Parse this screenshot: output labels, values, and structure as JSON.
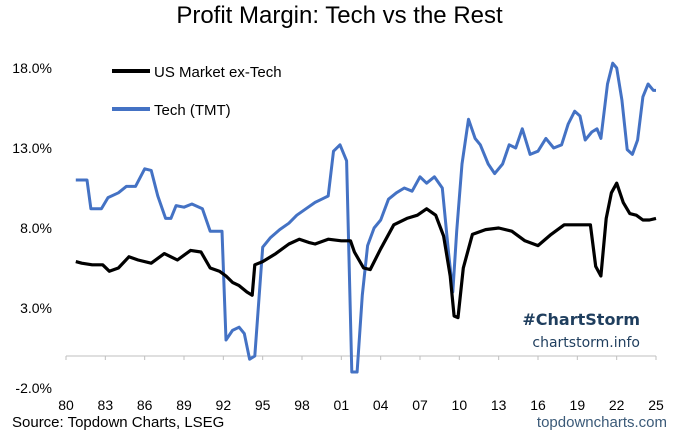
{
  "chart_data": {
    "type": "line",
    "title": "Profit Margin: Tech vs the Rest",
    "xlabel": "",
    "ylabel": "",
    "ylim": [
      -2.0,
      18.0
    ],
    "yticks": [
      "-2.0%",
      "3.0%",
      "8.0%",
      "13.0%",
      "18.0%"
    ],
    "ytick_values": [
      -2,
      3,
      8,
      13,
      18
    ],
    "xlim": [
      1980,
      2025
    ],
    "xtick_labels": [
      "80",
      "83",
      "86",
      "89",
      "92",
      "95",
      "98",
      "01",
      "04",
      "07",
      "10",
      "13",
      "16",
      "19",
      "22",
      "25"
    ],
    "xtick_values": [
      1980,
      1983,
      1986,
      1989,
      1992,
      1995,
      1998,
      2001,
      2004,
      2007,
      2010,
      2013,
      2016,
      2019,
      2022,
      2025
    ],
    "legend": [
      "US Market ex-Tech",
      "Tech (TMT)"
    ],
    "series": [
      {
        "name": "US Market ex-Tech",
        "color": "#000000",
        "x": [
          1980.75,
          1981.2,
          1982,
          1982.8,
          1983.3,
          1984,
          1984.8,
          1985.5,
          1986.5,
          1987.5,
          1988,
          1988.5,
          1989.5,
          1990.3,
          1991,
          1991.7,
          1992.2,
          1992.7,
          1993.2,
          1993.8,
          1994.2,
          1994.4,
          1995,
          1996,
          1997,
          1997.8,
          1998.5,
          1999,
          2000,
          2001,
          2001.7,
          2002,
          2002.7,
          2003.2,
          2004,
          2005,
          2006,
          2006.8,
          2007.5,
          2008.2,
          2008.8,
          2009.3,
          2009.6,
          2009.9,
          2010.3,
          2011,
          2012,
          2013,
          2014,
          2015,
          2016,
          2017,
          2018,
          2019,
          2020,
          2020.4,
          2020.8,
          2021.2,
          2021.6,
          2022,
          2022.5,
          2023,
          2023.5,
          2024,
          2024.5,
          2025
        ],
        "values": [
          5.9,
          5.8,
          5.7,
          5.7,
          5.3,
          5.5,
          6.2,
          6.0,
          5.8,
          6.4,
          6.2,
          6.0,
          6.6,
          6.5,
          5.5,
          5.3,
          5.0,
          4.6,
          4.4,
          4.0,
          3.8,
          5.7,
          5.9,
          6.4,
          7.0,
          7.3,
          7.1,
          7.0,
          7.3,
          7.2,
          7.2,
          6.5,
          5.5,
          5.4,
          6.7,
          8.2,
          8.6,
          8.8,
          9.2,
          8.8,
          7.5,
          5.0,
          2.5,
          2.4,
          5.5,
          7.6,
          7.9,
          8.0,
          7.8,
          7.2,
          6.9,
          7.6,
          8.2,
          8.2,
          8.2,
          5.6,
          5.0,
          8.6,
          10.2,
          10.8,
          9.6,
          8.9,
          8.8,
          8.5,
          8.5,
          8.6
        ]
      },
      {
        "name": "Tech (TMT)",
        "color": "#4472c4",
        "x": [
          1980.75,
          1981.6,
          1981.9,
          1982.7,
          1983.2,
          1984,
          1984.6,
          1985.3,
          1986,
          1986.5,
          1987,
          1987.6,
          1988,
          1988.4,
          1989,
          1989.6,
          1990.4,
          1991,
          1991.5,
          1991.9,
          1992.2,
          1992.7,
          1993.2,
          1993.6,
          1994,
          1994.4,
          1995,
          1995.6,
          1996.3,
          1997,
          1997.6,
          1998.3,
          1999,
          1999.5,
          2000,
          2000.4,
          2000.9,
          2001.4,
          2001.8,
          2002.2,
          2002.6,
          2003,
          2003.5,
          2004,
          2004.6,
          2005.2,
          2005.8,
          2006.4,
          2007,
          2007.5,
          2008.1,
          2008.7,
          2009.2,
          2009.5,
          2009.8,
          2010.2,
          2010.7,
          2011.2,
          2011.6,
          2012.2,
          2012.7,
          2013.3,
          2013.8,
          2014.3,
          2014.8,
          2015.4,
          2016,
          2016.6,
          2017.2,
          2017.8,
          2018.3,
          2018.8,
          2019.2,
          2019.6,
          2020.1,
          2020.5,
          2020.8,
          2021.3,
          2021.7,
          2022,
          2022.4,
          2022.8,
          2023.2,
          2023.6,
          2024,
          2024.4,
          2024.8,
          2025
        ],
        "values": [
          11.0,
          11.0,
          9.2,
          9.2,
          9.9,
          10.2,
          10.6,
          10.6,
          11.7,
          11.6,
          10.0,
          8.6,
          8.6,
          9.4,
          9.3,
          9.5,
          9.2,
          7.8,
          7.8,
          7.8,
          1.0,
          1.6,
          1.8,
          1.4,
          -0.2,
          0.0,
          6.8,
          7.4,
          7.9,
          8.3,
          8.8,
          9.2,
          9.6,
          9.8,
          10.0,
          12.8,
          13.2,
          12.2,
          -1.0,
          -1.0,
          3.8,
          6.9,
          8.0,
          8.5,
          9.8,
          10.2,
          10.5,
          10.3,
          11.2,
          10.8,
          11.2,
          10.5,
          6.3,
          4.0,
          7.8,
          12.0,
          14.8,
          13.6,
          13.2,
          12.0,
          11.4,
          12.0,
          13.2,
          13.0,
          14.2,
          12.6,
          12.8,
          13.6,
          13.0,
          13.2,
          14.5,
          15.3,
          15.0,
          13.5,
          14.0,
          14.2,
          13.6,
          17.0,
          18.3,
          18.0,
          16.0,
          12.9,
          12.6,
          13.5,
          16.2,
          17.0,
          16.6,
          16.6
        ]
      }
    ]
  },
  "footer": {
    "source": "Source: Topdown Charts, LSEG",
    "credit": "topdowncharts.com"
  },
  "branding": {
    "hashtag": "#ChartStorm",
    "site": "chartstorm.info"
  }
}
